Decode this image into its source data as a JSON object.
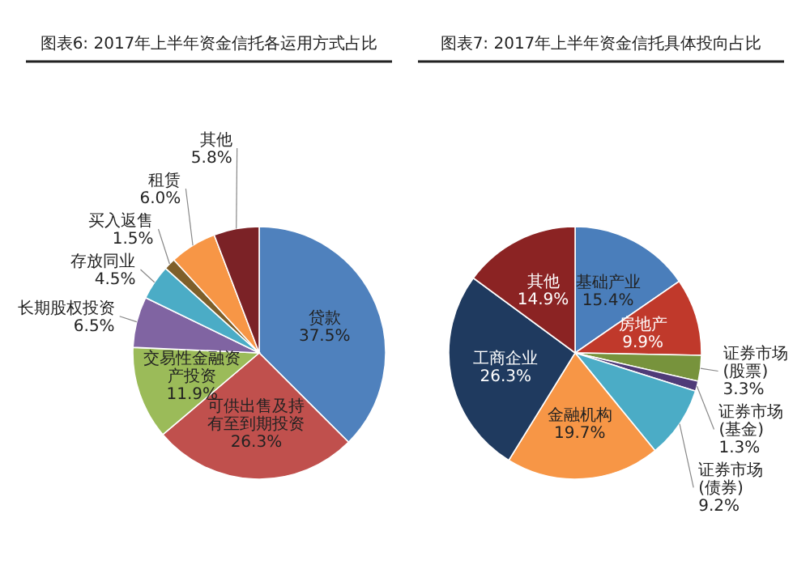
{
  "chart_data": [
    {
      "type": "pie",
      "title": "图表6:  2017年上半年资金信托各运用方式占比",
      "categories": [
        "贷款",
        "可供出售及持有至到期投资",
        "交易性金融资产投资",
        "长期股权投资",
        "存放同业",
        "买入返售",
        "租赁",
        "其他"
      ],
      "values": [
        37.5,
        26.3,
        11.9,
        6.5,
        4.5,
        1.5,
        6.0,
        5.8
      ],
      "value_labels": [
        "37.5%",
        "26.3%",
        "11.9%",
        "6.5%",
        "4.5%",
        "1.5%",
        "6.0%",
        "5.8%"
      ],
      "colors": [
        "#4f81bd",
        "#c0504d",
        "#9bbb59",
        "#8064a2",
        "#4bacc6",
        "#7f5f2a",
        "#f79646",
        "#7b2226"
      ]
    },
    {
      "type": "pie",
      "title": "图表7:  2017年上半年资金信托具体投向占比",
      "categories": [
        "基础产业",
        "房地产",
        "证券市场(股票)",
        "证券市场(基金)",
        "证券市场(债券)",
        "金融机构",
        "工商企业",
        "其他"
      ],
      "values": [
        15.4,
        9.9,
        3.3,
        1.3,
        9.2,
        19.7,
        26.3,
        14.9
      ],
      "value_labels": [
        "15.4%",
        "9.9%",
        "3.3%",
        "1.3%",
        "9.2%",
        "19.7%",
        "26.3%",
        "14.9%"
      ],
      "colors": [
        "#4a7ebb",
        "#c0392b",
        "#77933c",
        "#4f3b78",
        "#4bacc6",
        "#f79646",
        "#1f3a5f",
        "#8b2323"
      ]
    }
  ]
}
